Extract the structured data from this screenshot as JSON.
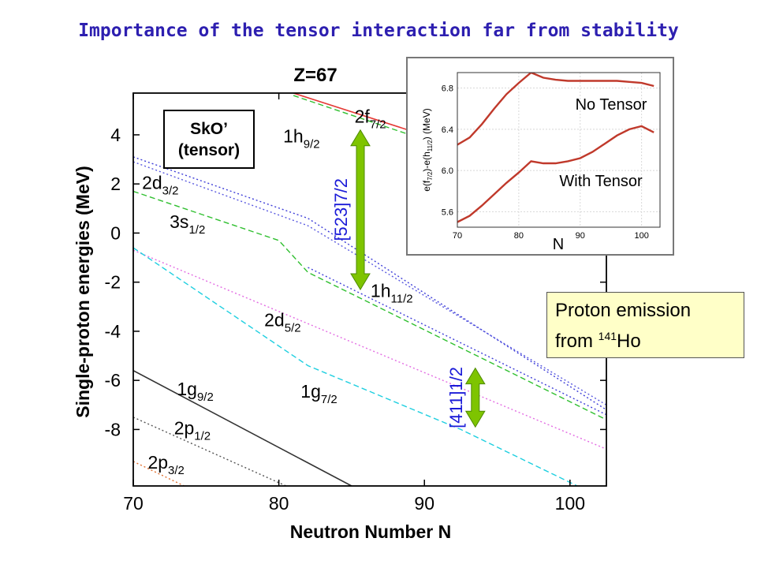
{
  "slide": {
    "title": "Importance of the tensor interaction far from stability"
  },
  "emission_box": {
    "line1": "Proton emission",
    "line2_prefix": "from ",
    "isotope_mass": "141",
    "element": "Ho"
  },
  "chart_data": [
    {
      "type": "line",
      "title": "Z=67",
      "xlabel": "Neutron Number N",
      "ylabel": "Single-proton energies (MeV)",
      "xlim": [
        70,
        102.5
      ],
      "ylim": [
        -10.3,
        5.7
      ],
      "xticks": [
        70,
        80,
        90,
        100
      ],
      "yticks": [
        4,
        2,
        0,
        -2,
        -4,
        -6,
        -8
      ],
      "legend_box": [
        "SkO’",
        "(tensor)"
      ],
      "series": [
        {
          "name": "2f7/2",
          "color": "#e53935",
          "dash": "solid",
          "points": [
            [
              81,
              5.7
            ],
            [
              102.5,
              1.6
            ]
          ]
        },
        {
          "name": "1h9/2",
          "color": "#2fbf2f",
          "dash": "dashed",
          "points": [
            [
              81,
              5.6
            ],
            [
              102.5,
              1.3
            ]
          ]
        },
        {
          "name": "2d3/2",
          "color": "#3f3fd8",
          "dash": "dotted",
          "points": [
            [
              70,
              3.1
            ],
            [
              82,
              0.6
            ],
            [
              102.5,
              -7.2
            ]
          ]
        },
        {
          "name": "2d3/2 (upper)",
          "color": "#5a5ae0",
          "dash": "dotted",
          "points": [
            [
              70,
              2.9
            ],
            [
              82,
              0.3
            ],
            [
              102.5,
              -7.0
            ]
          ]
        },
        {
          "name": "1h11/2",
          "color": "#3f3fd8",
          "dash": "dotted",
          "points": [
            [
              82,
              -1.4
            ],
            [
              102.5,
              -7.4
            ]
          ]
        },
        {
          "name": "3s1/2",
          "color": "#2fbf2f",
          "dash": "dashed",
          "points": [
            [
              70,
              1.7
            ],
            [
              80,
              -0.3
            ],
            [
              82,
              -1.6
            ],
            [
              102.5,
              -7.6
            ]
          ]
        },
        {
          "name": "2d5/2",
          "color": "#e36de3",
          "dash": "dotted",
          "points": [
            [
              70,
              -0.7
            ],
            [
              102.5,
              -8.8
            ]
          ]
        },
        {
          "name": "1g7/2",
          "color": "#1ecfe0",
          "dash": "dashed",
          "points": [
            [
              70,
              -0.6
            ],
            [
              82,
              -5.4
            ],
            [
              92.5,
              -8.0
            ],
            [
              100.5,
              -10.3
            ]
          ]
        },
        {
          "name": "1g9/2",
          "color": "#333333",
          "dash": "solid",
          "points": [
            [
              70,
              -5.6
            ],
            [
              85,
              -10.3
            ]
          ]
        },
        {
          "name": "2p1/2",
          "color": "#555555",
          "dash": "dotted",
          "points": [
            [
              70,
              -7.5
            ],
            [
              80.5,
              -10.3
            ]
          ]
        },
        {
          "name": "2p3/2",
          "color": "#e07030",
          "dash": "dotted",
          "points": [
            [
              70,
              -9.3
            ],
            [
              73.5,
              -10.3
            ]
          ]
        }
      ],
      "level_labels": [
        {
          "main": "2f",
          "sub": "7/2",
          "x": 85.2,
          "y": 4.5
        },
        {
          "main": "1h",
          "sub": "9/2",
          "x": 80.3,
          "y": 3.7
        },
        {
          "main": "2d",
          "sub": "3/2",
          "x": 70.6,
          "y": 1.8
        },
        {
          "main": "3s",
          "sub": "1/2",
          "x": 72.5,
          "y": 0.2
        },
        {
          "main": "1h",
          "sub": "11/2",
          "x": 86.3,
          "y": -2.6
        },
        {
          "main": "2d",
          "sub": "5/2",
          "x": 79.0,
          "y": -3.8
        },
        {
          "main": "1g",
          "sub": "9/2",
          "x": 73.0,
          "y": -6.6
        },
        {
          "main": "1g",
          "sub": "7/2",
          "x": 81.5,
          "y": -6.7
        },
        {
          "main": "2p",
          "sub": "1/2",
          "x": 72.8,
          "y": -8.2
        },
        {
          "main": "2p",
          "sub": "3/2",
          "x": 71.0,
          "y": -9.6
        }
      ],
      "gap_arrows": [
        {
          "label": "[523]7/2",
          "x": 85.6,
          "y_top": 4.2,
          "y_bottom": -2.3
        },
        {
          "label": "[411]1/2",
          "x": 93.5,
          "y_top": -5.5,
          "y_bottom": -7.9
        }
      ],
      "grid": false
    },
    {
      "type": "line",
      "title": "",
      "xlabel": "N",
      "ylabel": "e(f7/2)-e(h11/2) (MeV)",
      "ylabel_parts": {
        "pre": "e(f",
        "sub1": "7/2",
        "mid": ")-e(h",
        "sub2": "11/2",
        "post": ") (MeV)"
      },
      "xlim": [
        70,
        103
      ],
      "ylim": [
        5.45,
        6.95
      ],
      "xticks": [
        70,
        80,
        90,
        100
      ],
      "yticks": [
        5.6,
        6.0,
        6.4,
        6.8
      ],
      "series": [
        {
          "name": "No Tensor",
          "color": "#c0392b",
          "x": [
            70,
            72,
            74,
            76,
            78,
            80,
            82,
            84,
            86,
            88,
            90,
            92,
            94,
            96,
            98,
            100,
            102
          ],
          "values": [
            6.25,
            6.32,
            6.45,
            6.6,
            6.74,
            6.85,
            6.95,
            6.9,
            6.88,
            6.87,
            6.87,
            6.87,
            6.87,
            6.87,
            6.86,
            6.85,
            6.82
          ]
        },
        {
          "name": "With Tensor",
          "color": "#c0392b",
          "x": [
            70,
            72,
            74,
            76,
            78,
            80,
            82,
            84,
            86,
            88,
            90,
            92,
            94,
            96,
            98,
            100,
            102
          ],
          "values": [
            5.5,
            5.56,
            5.66,
            5.77,
            5.88,
            5.98,
            6.09,
            6.07,
            6.07,
            6.09,
            6.12,
            6.18,
            6.26,
            6.34,
            6.4,
            6.43,
            6.37
          ]
        }
      ],
      "grid": true
    }
  ]
}
